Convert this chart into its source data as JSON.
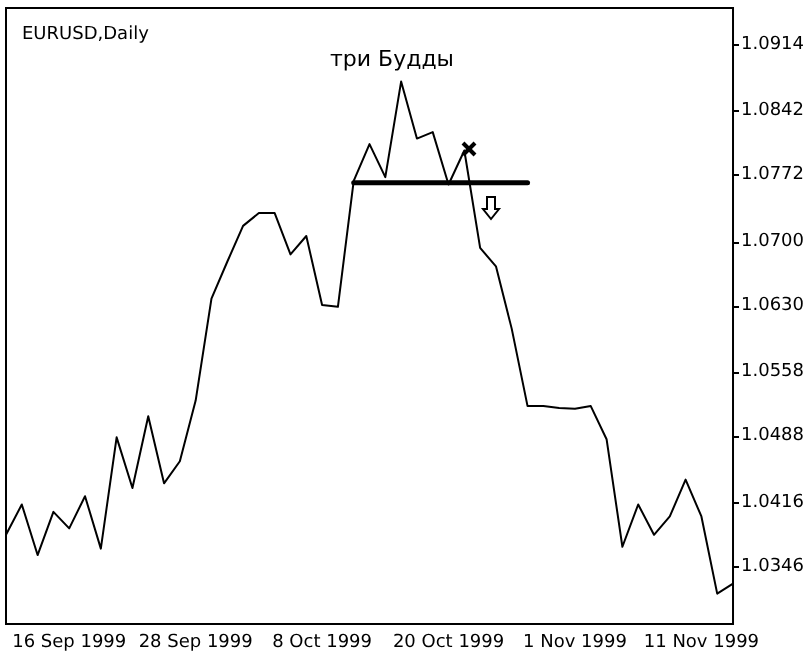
{
  "chart_data": {
    "type": "line",
    "title": "EURUSD,Daily",
    "annotations": [
      "три Будды"
    ],
    "categories": [
      null,
      null,
      null,
      null,
      "16 Sep 1999",
      null,
      null,
      null,
      null,
      null,
      null,
      null,
      "28 Sep 1999",
      null,
      null,
      null,
      null,
      null,
      null,
      null,
      "8 Oct 1999",
      null,
      null,
      null,
      null,
      null,
      null,
      null,
      "20 Oct 1999",
      null,
      null,
      null,
      null,
      null,
      null,
      null,
      "1 Nov 1999",
      null,
      null,
      null,
      null,
      null,
      null,
      null,
      "11 Nov 1999",
      null,
      null
    ],
    "series": [
      {
        "color": "#000000",
        "values": [
          1.0381,
          1.0414,
          1.0359,
          1.0406,
          1.0388,
          1.0423,
          1.0366,
          1.0487,
          1.0432,
          1.051,
          1.0437,
          1.0461,
          1.0527,
          1.0638,
          1.0678,
          1.0717,
          1.0731,
          1.0731,
          1.0686,
          1.0706,
          1.0631,
          1.0629,
          1.0766,
          1.0806,
          1.077,
          1.0874,
          1.0812,
          1.0819,
          1.0762,
          1.0799,
          1.0693,
          1.0673,
          1.0605,
          1.0521,
          1.0521,
          1.0519,
          1.0518,
          1.0521,
          1.0485,
          1.0368,
          1.0414,
          1.0381,
          1.0401,
          1.0441,
          1.0401,
          1.0317,
          1.0328
        ]
      },
      {
        "type": "line",
        "color": "#000000",
        "values": [
          null,
          null,
          null,
          null,
          null,
          null,
          null,
          null,
          null,
          null,
          null,
          null,
          null,
          null,
          null,
          null,
          null,
          null,
          null,
          null,
          null,
          null,
          1.0764,
          null,
          null,
          null,
          null,
          null,
          null,
          null,
          null,
          null,
          null,
          1.0764,
          null,
          null,
          null,
          null,
          null,
          null,
          null,
          null,
          null,
          null,
          null,
          null,
          null
        ]
      }
    ],
    "ylim": [
      1.0284,
      1.0954
    ],
    "yticks": [
      1.0346,
      1.0416,
      1.0488,
      1.0558,
      {
        "value": 1.063,
        "label": "1.0630"
      },
      {
        "value": 1.07,
        "label": "1.0700"
      },
      1.0772,
      1.0842,
      1.0914
    ],
    "grid": false
  }
}
